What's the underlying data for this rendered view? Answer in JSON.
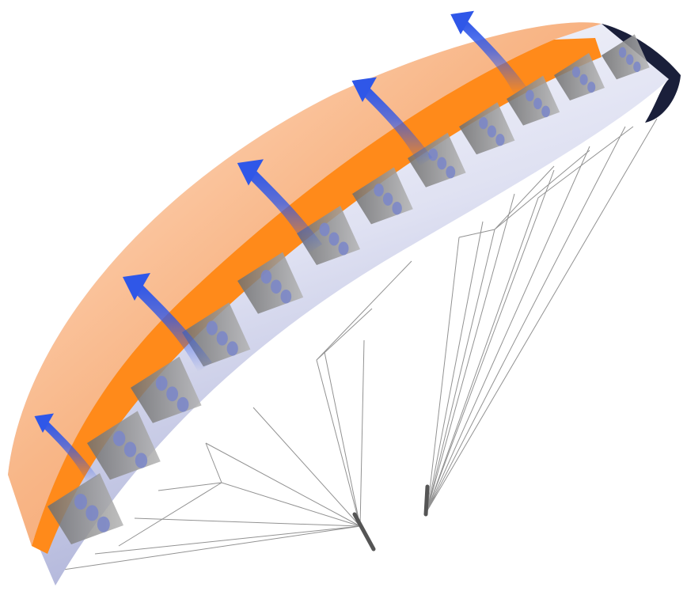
{
  "scene": {
    "colors": {
      "canopy_top": "#f7a36e",
      "canopy_top_light": "#ffd9bd",
      "canopy_bottom": "#c9cce6",
      "canopy_bottom_light": "#ffffff",
      "internal_band": "#ff8a1a",
      "ribs": "#8a8a8a",
      "rib_holes": "#7a86c9",
      "lines": "#6f6f6f",
      "airflow_arrows": "#2f57e8",
      "trailing_edge": "#1a1f3a"
    },
    "illustration": "paraglider-canopy-airflow-illustration",
    "arrow_count": 5
  }
}
